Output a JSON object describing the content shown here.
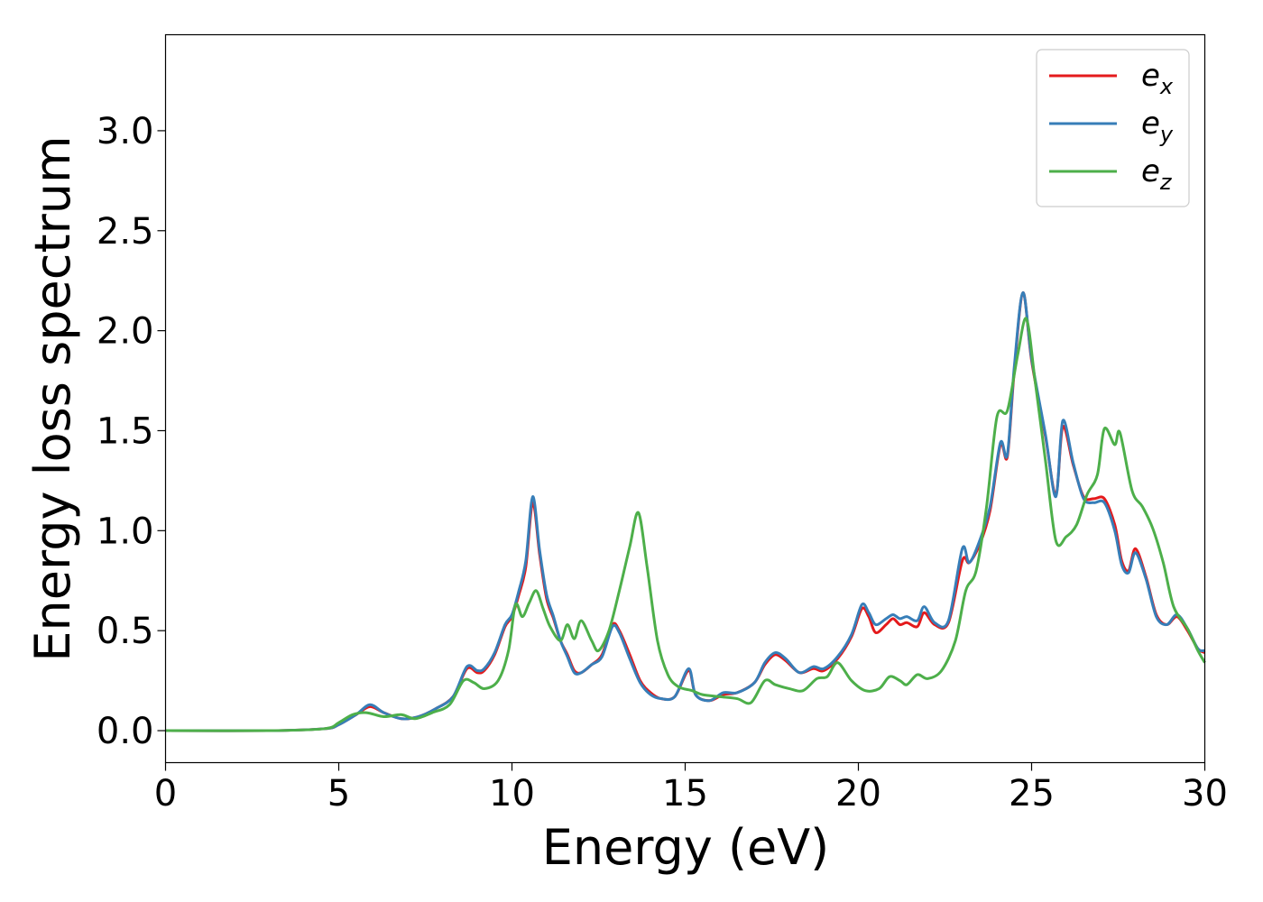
{
  "chart_data": {
    "type": "line",
    "title": "",
    "xlabel": "Energy (eV)",
    "ylabel": "Energy loss spectrum",
    "xlim": [
      0,
      30
    ],
    "ylim": [
      -0.16,
      3.48
    ],
    "xticks": [
      0,
      5,
      10,
      15,
      20,
      25,
      30
    ],
    "xtick_labels": [
      "0",
      "5",
      "10",
      "15",
      "20",
      "25",
      "30"
    ],
    "yticks": [
      0.0,
      0.5,
      1.0,
      1.5,
      2.0,
      2.5,
      3.0
    ],
    "ytick_labels": [
      "0.0",
      "0.5",
      "1.0",
      "1.5",
      "2.0",
      "2.5",
      "3.0"
    ],
    "grid": false,
    "legend_position": "top-right",
    "series": [
      {
        "name": "e_x",
        "legend": {
          "base": "e",
          "sub": "x"
        },
        "color": "#e41a1c",
        "points": [
          [
            0,
            0.0
          ],
          [
            3,
            0.0
          ],
          [
            4.6,
            0.01
          ],
          [
            5.0,
            0.03
          ],
          [
            5.5,
            0.08
          ],
          [
            5.9,
            0.12
          ],
          [
            6.3,
            0.09
          ],
          [
            6.8,
            0.06
          ],
          [
            7.3,
            0.07
          ],
          [
            7.8,
            0.11
          ],
          [
            8.3,
            0.17
          ],
          [
            8.7,
            0.31
          ],
          [
            9.0,
            0.29
          ],
          [
            9.2,
            0.3
          ],
          [
            9.5,
            0.38
          ],
          [
            9.8,
            0.52
          ],
          [
            10.0,
            0.57
          ],
          [
            10.2,
            0.68
          ],
          [
            10.4,
            0.82
          ],
          [
            10.6,
            1.14
          ],
          [
            10.8,
            0.88
          ],
          [
            11.0,
            0.66
          ],
          [
            11.2,
            0.56
          ],
          [
            11.4,
            0.45
          ],
          [
            11.6,
            0.38
          ],
          [
            11.8,
            0.3
          ],
          [
            12.0,
            0.29
          ],
          [
            12.3,
            0.33
          ],
          [
            12.6,
            0.38
          ],
          [
            12.9,
            0.53
          ],
          [
            13.1,
            0.5
          ],
          [
            13.4,
            0.38
          ],
          [
            13.7,
            0.25
          ],
          [
            14.0,
            0.19
          ],
          [
            14.3,
            0.16
          ],
          [
            14.7,
            0.17
          ],
          [
            15.1,
            0.3
          ],
          [
            15.3,
            0.18
          ],
          [
            15.7,
            0.15
          ],
          [
            16.1,
            0.18
          ],
          [
            16.5,
            0.19
          ],
          [
            17.0,
            0.24
          ],
          [
            17.3,
            0.33
          ],
          [
            17.6,
            0.38
          ],
          [
            17.9,
            0.35
          ],
          [
            18.3,
            0.29
          ],
          [
            18.7,
            0.31
          ],
          [
            19.0,
            0.3
          ],
          [
            19.4,
            0.36
          ],
          [
            19.8,
            0.47
          ],
          [
            20.1,
            0.61
          ],
          [
            20.3,
            0.57
          ],
          [
            20.5,
            0.49
          ],
          [
            20.8,
            0.53
          ],
          [
            21.0,
            0.56
          ],
          [
            21.2,
            0.53
          ],
          [
            21.4,
            0.54
          ],
          [
            21.7,
            0.52
          ],
          [
            21.9,
            0.59
          ],
          [
            22.2,
            0.53
          ],
          [
            22.6,
            0.54
          ],
          [
            23.0,
            0.85
          ],
          [
            23.2,
            0.84
          ],
          [
            23.5,
            0.93
          ],
          [
            23.8,
            1.1
          ],
          [
            24.1,
            1.43
          ],
          [
            24.3,
            1.37
          ],
          [
            24.5,
            1.8
          ],
          [
            24.75,
            2.19
          ],
          [
            25.0,
            1.85
          ],
          [
            25.4,
            1.47
          ],
          [
            25.7,
            1.18
          ],
          [
            25.9,
            1.52
          ],
          [
            26.2,
            1.33
          ],
          [
            26.5,
            1.17
          ],
          [
            26.8,
            1.16
          ],
          [
            27.1,
            1.16
          ],
          [
            27.4,
            1.03
          ],
          [
            27.6,
            0.85
          ],
          [
            27.8,
            0.8
          ],
          [
            28.0,
            0.91
          ],
          [
            28.3,
            0.77
          ],
          [
            28.6,
            0.58
          ],
          [
            28.9,
            0.53
          ],
          [
            29.2,
            0.57
          ],
          [
            29.5,
            0.5
          ],
          [
            29.8,
            0.41
          ],
          [
            30.0,
            0.39
          ]
        ]
      },
      {
        "name": "e_y",
        "legend": {
          "base": "e",
          "sub": "y"
        },
        "color": "#377eb8",
        "points": [
          [
            0,
            0.0
          ],
          [
            3,
            0.0
          ],
          [
            4.6,
            0.01
          ],
          [
            5.0,
            0.03
          ],
          [
            5.5,
            0.08
          ],
          [
            5.9,
            0.13
          ],
          [
            6.3,
            0.09
          ],
          [
            6.8,
            0.06
          ],
          [
            7.3,
            0.07
          ],
          [
            7.8,
            0.11
          ],
          [
            8.3,
            0.17
          ],
          [
            8.7,
            0.32
          ],
          [
            9.0,
            0.3
          ],
          [
            9.2,
            0.31
          ],
          [
            9.5,
            0.39
          ],
          [
            9.8,
            0.53
          ],
          [
            10.0,
            0.58
          ],
          [
            10.2,
            0.7
          ],
          [
            10.4,
            0.85
          ],
          [
            10.6,
            1.17
          ],
          [
            10.8,
            0.9
          ],
          [
            11.0,
            0.68
          ],
          [
            11.2,
            0.57
          ],
          [
            11.4,
            0.45
          ],
          [
            11.6,
            0.37
          ],
          [
            11.8,
            0.29
          ],
          [
            12.0,
            0.29
          ],
          [
            12.3,
            0.33
          ],
          [
            12.6,
            0.37
          ],
          [
            12.9,
            0.52
          ],
          [
            13.1,
            0.49
          ],
          [
            13.4,
            0.36
          ],
          [
            13.7,
            0.24
          ],
          [
            14.0,
            0.18
          ],
          [
            14.3,
            0.16
          ],
          [
            14.7,
            0.17
          ],
          [
            15.1,
            0.31
          ],
          [
            15.3,
            0.18
          ],
          [
            15.7,
            0.15
          ],
          [
            16.1,
            0.19
          ],
          [
            16.5,
            0.19
          ],
          [
            17.0,
            0.24
          ],
          [
            17.3,
            0.34
          ],
          [
            17.6,
            0.39
          ],
          [
            17.9,
            0.36
          ],
          [
            18.3,
            0.29
          ],
          [
            18.7,
            0.32
          ],
          [
            19.0,
            0.31
          ],
          [
            19.4,
            0.37
          ],
          [
            19.8,
            0.48
          ],
          [
            20.1,
            0.63
          ],
          [
            20.3,
            0.59
          ],
          [
            20.5,
            0.53
          ],
          [
            20.8,
            0.56
          ],
          [
            21.0,
            0.58
          ],
          [
            21.2,
            0.56
          ],
          [
            21.4,
            0.57
          ],
          [
            21.7,
            0.55
          ],
          [
            21.9,
            0.62
          ],
          [
            22.2,
            0.54
          ],
          [
            22.6,
            0.55
          ],
          [
            23.0,
            0.91
          ],
          [
            23.2,
            0.84
          ],
          [
            23.5,
            0.95
          ],
          [
            23.8,
            1.12
          ],
          [
            24.1,
            1.44
          ],
          [
            24.3,
            1.38
          ],
          [
            24.5,
            1.82
          ],
          [
            24.75,
            2.19
          ],
          [
            25.0,
            1.86
          ],
          [
            25.4,
            1.48
          ],
          [
            25.7,
            1.17
          ],
          [
            25.9,
            1.55
          ],
          [
            26.2,
            1.34
          ],
          [
            26.5,
            1.16
          ],
          [
            26.8,
            1.14
          ],
          [
            27.1,
            1.14
          ],
          [
            27.4,
            1.0
          ],
          [
            27.6,
            0.83
          ],
          [
            27.8,
            0.79
          ],
          [
            28.0,
            0.89
          ],
          [
            28.3,
            0.76
          ],
          [
            28.6,
            0.57
          ],
          [
            28.9,
            0.53
          ],
          [
            29.2,
            0.58
          ],
          [
            29.5,
            0.51
          ],
          [
            29.8,
            0.41
          ],
          [
            30.0,
            0.4
          ]
        ]
      },
      {
        "name": "e_z",
        "legend": {
          "base": "e",
          "sub": "z"
        },
        "color": "#4daf4a",
        "points": [
          [
            0,
            0.0
          ],
          [
            3,
            0.0
          ],
          [
            4.6,
            0.01
          ],
          [
            5.0,
            0.04
          ],
          [
            5.4,
            0.08
          ],
          [
            5.8,
            0.09
          ],
          [
            6.3,
            0.07
          ],
          [
            6.8,
            0.08
          ],
          [
            7.2,
            0.06
          ],
          [
            7.7,
            0.09
          ],
          [
            8.2,
            0.13
          ],
          [
            8.6,
            0.25
          ],
          [
            8.9,
            0.24
          ],
          [
            9.2,
            0.21
          ],
          [
            9.6,
            0.25
          ],
          [
            9.9,
            0.4
          ],
          [
            10.1,
            0.63
          ],
          [
            10.3,
            0.57
          ],
          [
            10.5,
            0.64
          ],
          [
            10.7,
            0.7
          ],
          [
            10.9,
            0.61
          ],
          [
            11.1,
            0.52
          ],
          [
            11.4,
            0.45
          ],
          [
            11.6,
            0.53
          ],
          [
            11.8,
            0.46
          ],
          [
            12.0,
            0.55
          ],
          [
            12.3,
            0.45
          ],
          [
            12.5,
            0.4
          ],
          [
            12.8,
            0.5
          ],
          [
            13.1,
            0.7
          ],
          [
            13.4,
            0.92
          ],
          [
            13.65,
            1.09
          ],
          [
            13.9,
            0.82
          ],
          [
            14.2,
            0.45
          ],
          [
            14.5,
            0.28
          ],
          [
            14.8,
            0.22
          ],
          [
            15.2,
            0.2
          ],
          [
            15.5,
            0.18
          ],
          [
            16.0,
            0.17
          ],
          [
            16.5,
            0.16
          ],
          [
            16.9,
            0.14
          ],
          [
            17.3,
            0.25
          ],
          [
            17.6,
            0.23
          ],
          [
            18.0,
            0.21
          ],
          [
            18.4,
            0.2
          ],
          [
            18.8,
            0.26
          ],
          [
            19.1,
            0.27
          ],
          [
            19.4,
            0.34
          ],
          [
            19.8,
            0.25
          ],
          [
            20.2,
            0.2
          ],
          [
            20.6,
            0.21
          ],
          [
            20.9,
            0.27
          ],
          [
            21.2,
            0.25
          ],
          [
            21.4,
            0.23
          ],
          [
            21.7,
            0.28
          ],
          [
            22.0,
            0.26
          ],
          [
            22.4,
            0.3
          ],
          [
            22.8,
            0.45
          ],
          [
            23.1,
            0.7
          ],
          [
            23.4,
            0.8
          ],
          [
            23.7,
            1.12
          ],
          [
            24.0,
            1.57
          ],
          [
            24.3,
            1.6
          ],
          [
            24.6,
            1.88
          ],
          [
            24.85,
            2.06
          ],
          [
            25.1,
            1.75
          ],
          [
            25.4,
            1.35
          ],
          [
            25.7,
            0.95
          ],
          [
            26.0,
            0.97
          ],
          [
            26.3,
            1.03
          ],
          [
            26.6,
            1.18
          ],
          [
            26.9,
            1.28
          ],
          [
            27.1,
            1.51
          ],
          [
            27.4,
            1.43
          ],
          [
            27.55,
            1.49
          ],
          [
            27.9,
            1.2
          ],
          [
            28.2,
            1.12
          ],
          [
            28.5,
            1.01
          ],
          [
            28.8,
            0.84
          ],
          [
            29.1,
            0.62
          ],
          [
            29.5,
            0.51
          ],
          [
            29.8,
            0.4
          ],
          [
            30.0,
            0.34
          ]
        ]
      }
    ]
  }
}
